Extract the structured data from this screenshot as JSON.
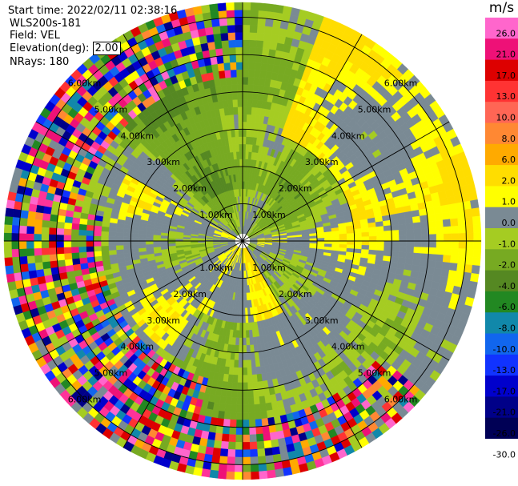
{
  "header": {
    "start_time": "Start time: 2022/02/11 02:38:16",
    "station": "WLS200s-181",
    "field": "Field: VEL",
    "elevation_label": "Elevation(deg):",
    "elevation_value": "2.00",
    "nrays": "NRays: 180"
  },
  "colorbar": {
    "unit": "m/s",
    "bins": [
      {
        "label": "26.0",
        "color": "#ff66cc"
      },
      {
        "label": "21.0",
        "color": "#ee1177"
      },
      {
        "label": "17.0",
        "color": "#dd0000"
      },
      {
        "label": "13.0",
        "color": "#ff3333"
      },
      {
        "label": "10.0",
        "color": "#ff6655"
      },
      {
        "label": "8.0",
        "color": "#ff8833"
      },
      {
        "label": "6.0",
        "color": "#ffaa00"
      },
      {
        "label": "2.0",
        "color": "#ffdd00"
      },
      {
        "label": "1.0",
        "color": "#ffff00"
      },
      {
        "label": "0.0",
        "color": "#7a8a94"
      },
      {
        "label": "-1.0",
        "color": "#a5cc22"
      },
      {
        "label": "-2.0",
        "color": "#77aa22"
      },
      {
        "label": "-4.0",
        "color": "#558822"
      },
      {
        "label": "-6.0",
        "color": "#228822"
      },
      {
        "label": "-8.0",
        "color": "#1188aa"
      },
      {
        "label": "-10.0",
        "color": "#1166ee"
      },
      {
        "label": "-13.0",
        "color": "#1133ff"
      },
      {
        "label": "-17.0",
        "color": "#0000cc"
      },
      {
        "label": "-21.0",
        "color": "#000088"
      },
      {
        "label": "-26.0",
        "color": "#000055"
      },
      {
        "label": "-30.0",
        "color": "#ffffff"
      }
    ]
  },
  "chart_data": {
    "type": "heatmap",
    "subtype": "radar-ppi",
    "field": "VEL",
    "unit": "m/s",
    "range_ring_labels": [
      "1.00km",
      "2.00km",
      "3.00km",
      "4.00km",
      "5.00km",
      "6.00km"
    ],
    "max_range_km": 6.4,
    "nrays": 180,
    "azimuth_step_deg": 2,
    "gate_km": 0.2,
    "spoke_step_deg": 30,
    "noise_start_km_by_azimuth": [
      {
        "from_deg": 280,
        "to_deg": 360,
        "start_km": 4.4
      },
      {
        "from_deg": 195,
        "to_deg": 280,
        "start_km": 3.8
      },
      {
        "from_deg": 130,
        "to_deg": 195,
        "start_km": 4.8
      }
    ],
    "coherent_velocity_regions": [
      {
        "az_from": 315,
        "az_to": 45,
        "r_from": 1.4,
        "r_to": 6.4,
        "value": -3.0
      },
      {
        "az_from": 20,
        "az_to": 95,
        "r_from": 3.0,
        "r_to": 6.4,
        "value": 1.5
      },
      {
        "az_from": 80,
        "az_to": 140,
        "r_from": 0.4,
        "r_to": 6.4,
        "value": 0.0
      },
      {
        "az_from": 150,
        "az_to": 215,
        "r_from": 0.3,
        "r_to": 2.2,
        "value": 1.5
      },
      {
        "az_from": 150,
        "az_to": 215,
        "r_from": 2.2,
        "r_to": 4.6,
        "value": -1.5
      },
      {
        "az_from": 215,
        "az_to": 300,
        "r_from": 0.3,
        "r_to": 3.6,
        "value": 0.0
      }
    ],
    "legend": "right",
    "grid": true
  }
}
